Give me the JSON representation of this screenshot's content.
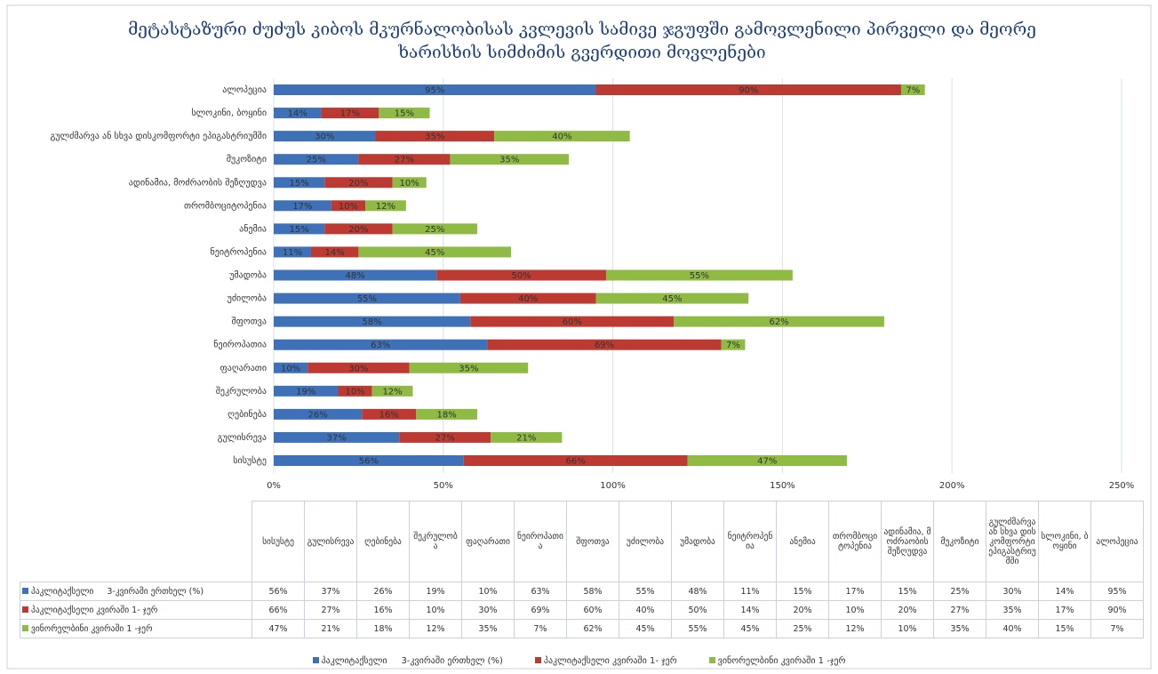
{
  "chart_data": {
    "type": "bar",
    "orientation": "horizontal",
    "stacked": true,
    "title": "მეტასტაზური ძუძუს კიბოს მკურნალობისას კვლევის სამივე ჯგუფში გამოვლენილი პირველი და მეორე ხარისხის სიმძიმის გვერდითი მოვლენები",
    "categories": [
      "სისუსტე",
      "გულისრევა",
      "ღებინება",
      "შეკრულობა",
      "ფაღარათი",
      "ნეიროპათია",
      "შფოთვა",
      "უძილობა",
      "უმადობა",
      "ნეიტროპენია",
      "ანემია",
      "თრომბოციტოპენია",
      "ადინამია, მოძრაობის შეზღუდვა",
      "მუკოზიტი",
      "გულძმარვა ან სხვა დისკომფორტი ეპიგასტრიუმში",
      "სლოკინი, ბოყინი",
      "ალოპეცია"
    ],
    "series": [
      {
        "name": "პაკლიტაქსელი     3-კვირაში ერთხელ (%)",
        "color": "#3f71b8",
        "values": [
          56,
          37,
          26,
          19,
          10,
          63,
          58,
          55,
          48,
          11,
          15,
          17,
          15,
          25,
          30,
          14,
          95
        ],
        "value_labels": [
          "56%",
          "37%",
          "26%",
          "19%",
          "10%",
          "63%",
          "58%",
          "55%",
          "48%",
          "11%",
          "15%",
          "17%",
          "15%",
          "25%",
          "30%",
          "14%",
          "95%"
        ]
      },
      {
        "name": "პაკლიტაქსელი კვირაში 1- ჯერ",
        "color": "#bd3a33",
        "values": [
          66,
          27,
          16,
          10,
          30,
          69,
          60,
          40,
          50,
          14,
          20,
          10,
          20,
          27,
          35,
          17,
          90
        ],
        "value_labels": [
          "66%",
          "27%",
          "16%",
          "10%",
          "30%",
          "69%",
          "60%",
          "40%",
          "50%",
          "14%",
          "20%",
          "10%",
          "20%",
          "27%",
          "35%",
          "17%",
          "90%"
        ]
      },
      {
        "name": "ვინორელბინი კვირაში 1 -ჯერ",
        "color": "#8fbb45",
        "values": [
          47,
          21,
          18,
          12,
          35,
          7,
          62,
          45,
          55,
          45,
          25,
          12,
          10,
          35,
          40,
          15,
          7
        ],
        "value_labels": [
          "47%",
          "21%",
          "18%",
          "12%",
          "35%",
          "7%",
          "62%",
          "45%",
          "55%",
          "45%",
          "25%",
          "12%",
          "10%",
          "35%",
          "40%",
          "15%",
          "7%"
        ]
      }
    ],
    "xlim": [
      0,
      250
    ],
    "xticks": [
      {
        "value": 0,
        "label": "0%"
      },
      {
        "value": 50,
        "label": "50%"
      },
      {
        "value": 100,
        "label": "100%"
      },
      {
        "value": 150,
        "label": "150%"
      },
      {
        "value": 200,
        "label": "200%"
      },
      {
        "value": 250,
        "label": "250%"
      }
    ],
    "grid": true,
    "legend": "bottom"
  }
}
